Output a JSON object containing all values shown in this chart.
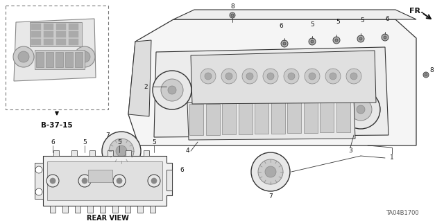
{
  "bg_color": "#ffffff",
  "lc": "#333333",
  "dc": "#111111",
  "gray1": "#888888",
  "gray2": "#aaaaaa",
  "gray3": "#cccccc",
  "gray4": "#e8e8e8",
  "fig_width": 6.4,
  "fig_height": 3.19,
  "dpi": 100,
  "part_number": "TA04B1700",
  "ref_code": "B-37-15",
  "rear_view_label": "REAR VIEW",
  "fr_label": "FR."
}
